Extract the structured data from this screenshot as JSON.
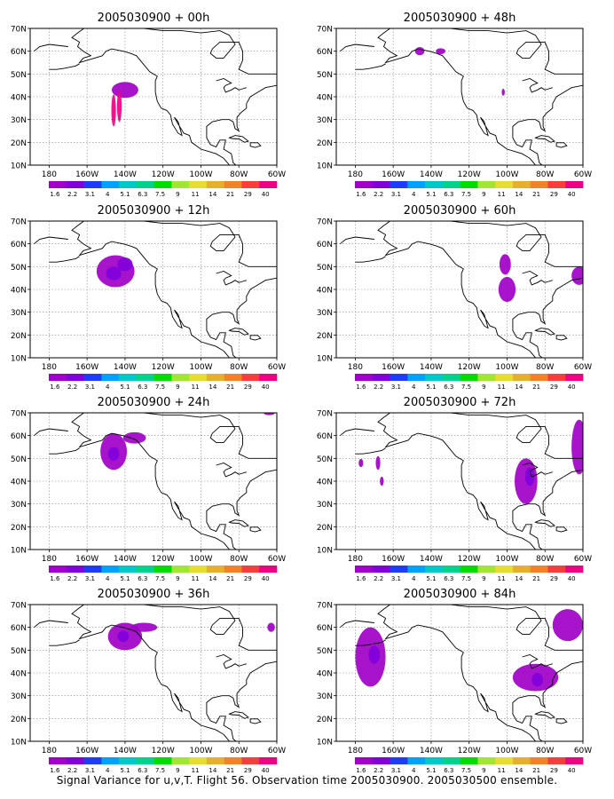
{
  "caption": "Signal Variance for u,v,T. Flight 56. Observation time 2005030900. 2005030500 ensemble.",
  "lat_labels": [
    "70N",
    "60N",
    "50N",
    "40N",
    "30N",
    "20N",
    "10N"
  ],
  "lon_labels": [
    "180",
    "160W",
    "140W",
    "120W",
    "100W",
    "80W",
    "60W"
  ],
  "legend": {
    "labels": [
      "1.6",
      "2.2",
      "3.1",
      "4",
      "5.1",
      "6.3",
      "7.5",
      "9",
      "11",
      "14",
      "21",
      "29",
      "40"
    ],
    "colors": [
      "#a000c8",
      "#8200dc",
      "#1e3cff",
      "#00a0ff",
      "#00c8c8",
      "#00d28c",
      "#00dc00",
      "#a0e632",
      "#e6dc32",
      "#e6af2d",
      "#f08228",
      "#fa3c3c",
      "#f00082"
    ]
  },
  "panels": [
    {
      "title": "2005030900 + 00h",
      "blobs": [
        {
          "lon": -140,
          "lat": 43,
          "rx": 7,
          "ry": 3.5,
          "color": "#a000c8"
        },
        {
          "lon": -146,
          "lat": 34,
          "rx": 1.2,
          "ry": 7,
          "color": "#f00082"
        },
        {
          "lon": -143,
          "lat": 36,
          "rx": 1.2,
          "ry": 7,
          "color": "#f00082"
        }
      ]
    },
    {
      "title": "2005030900 + 48h",
      "blobs": [
        {
          "lon": -146,
          "lat": 60,
          "rx": 2.5,
          "ry": 1.8,
          "color": "#a000c8"
        },
        {
          "lon": -135,
          "lat": 60,
          "rx": 2.5,
          "ry": 1.3,
          "color": "#a000c8"
        },
        {
          "lon": -102,
          "lat": 42,
          "rx": 0.8,
          "ry": 1.5,
          "color": "#a000c8"
        }
      ]
    },
    {
      "title": "2005030900 + 12h",
      "blobs": [
        {
          "lon": -145,
          "lat": 48,
          "rx": 10,
          "ry": 7,
          "color": "#a000c8"
        },
        {
          "lon": -146,
          "lat": 47,
          "rx": 4,
          "ry": 3,
          "color": "#8200dc"
        },
        {
          "lon": -140,
          "lat": 51,
          "rx": 4,
          "ry": 3,
          "color": "#8200dc"
        }
      ]
    },
    {
      "title": "2005030900 + 60h",
      "blobs": [
        {
          "lon": -101,
          "lat": 51,
          "rx": 3,
          "ry": 4.5,
          "color": "#a000c8"
        },
        {
          "lon": -100,
          "lat": 40,
          "rx": 4.5,
          "ry": 5.5,
          "color": "#a000c8"
        },
        {
          "lon": -62,
          "lat": 46,
          "rx": 4,
          "ry": 4,
          "color": "#a000c8"
        }
      ]
    },
    {
      "title": "2005030900 + 24h",
      "blobs": [
        {
          "lon": -146,
          "lat": 53,
          "rx": 7,
          "ry": 8,
          "color": "#a000c8"
        },
        {
          "lon": -135,
          "lat": 59,
          "rx": 6,
          "ry": 2.5,
          "color": "#a000c8"
        },
        {
          "lon": -146,
          "lat": 52,
          "rx": 3,
          "ry": 3,
          "color": "#8200dc"
        },
        {
          "lon": -64,
          "lat": 70,
          "rx": 3,
          "ry": 1,
          "color": "#a000c8"
        }
      ]
    },
    {
      "title": "2005030900 + 72h",
      "blobs": [
        {
          "lon": -177,
          "lat": 48,
          "rx": 1.2,
          "ry": 1.8,
          "color": "#a000c8"
        },
        {
          "lon": -168,
          "lat": 48,
          "rx": 1.2,
          "ry": 3,
          "color": "#a000c8"
        },
        {
          "lon": -166,
          "lat": 40,
          "rx": 1,
          "ry": 2,
          "color": "#a000c8"
        },
        {
          "lon": -90,
          "lat": 40,
          "rx": 6,
          "ry": 10,
          "color": "#a000c8"
        },
        {
          "lon": -88,
          "lat": 42,
          "rx": 2.5,
          "ry": 4,
          "color": "#8200dc"
        },
        {
          "lon": -62,
          "lat": 55,
          "rx": 4,
          "ry": 12,
          "color": "#a000c8"
        }
      ]
    },
    {
      "title": "2005030900 + 36h",
      "blobs": [
        {
          "lon": -140,
          "lat": 56,
          "rx": 9,
          "ry": 6,
          "color": "#a000c8"
        },
        {
          "lon": -130,
          "lat": 60,
          "rx": 7,
          "ry": 2,
          "color": "#a000c8"
        },
        {
          "lon": -141,
          "lat": 56,
          "rx": 3,
          "ry": 2.5,
          "color": "#8200dc"
        },
        {
          "lon": -63,
          "lat": 60,
          "rx": 2,
          "ry": 2,
          "color": "#a000c8"
        }
      ]
    },
    {
      "title": "2005030900 + 84h",
      "blobs": [
        {
          "lon": -172,
          "lat": 47,
          "rx": 8,
          "ry": 13,
          "color": "#a000c8"
        },
        {
          "lon": -170,
          "lat": 48,
          "rx": 3,
          "ry": 4,
          "color": "#8200dc"
        },
        {
          "lon": -85,
          "lat": 38,
          "rx": 12,
          "ry": 6,
          "color": "#a000c8"
        },
        {
          "lon": -84,
          "lat": 37,
          "rx": 3,
          "ry": 3,
          "color": "#8200dc"
        },
        {
          "lon": -68,
          "lat": 61,
          "rx": 8,
          "ry": 7,
          "color": "#a000c8"
        }
      ]
    }
  ]
}
